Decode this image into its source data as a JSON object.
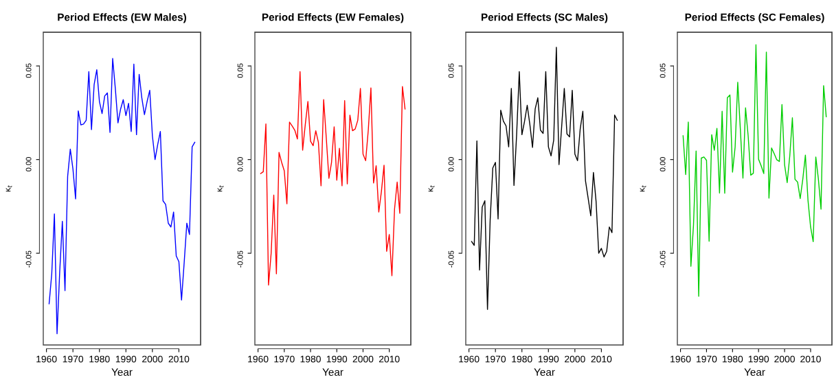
{
  "chart_data": [
    {
      "type": "line",
      "title": "Period Effects (EW Males)",
      "xlabel": "Year",
      "ylabel": "κ$_{t}$",
      "x": [
        1961,
        1962,
        1963,
        1964,
        1965,
        1966,
        1967,
        1968,
        1969,
        1970,
        1971,
        1972,
        1973,
        1974,
        1975,
        1976,
        1977,
        1978,
        1979,
        1980,
        1981,
        1982,
        1983,
        1984,
        1985,
        1986,
        1987,
        1988,
        1989,
        1990,
        1991,
        1992,
        1993,
        1994,
        1995,
        1996,
        1997,
        1998,
        1999,
        2000,
        2001,
        2002,
        2003,
        2004,
        2005,
        2006,
        2007,
        2008,
        2009,
        2010,
        2011,
        2012,
        2013,
        2014,
        2015,
        2016
      ],
      "series": [
        {
          "color": "#0000ff",
          "values": [
            -0.077,
            -0.061,
            -0.029,
            -0.093,
            -0.06,
            -0.033,
            -0.07,
            -0.009,
            0.0056,
            -0.005,
            -0.021,
            0.026,
            0.0185,
            0.019,
            0.021,
            0.047,
            0.016,
            0.04,
            0.048,
            0.031,
            0.0246,
            0.034,
            0.0356,
            0.0145,
            0.054,
            0.038,
            0.0196,
            0.027,
            0.032,
            0.0235,
            0.03,
            0.015,
            0.051,
            0.0133,
            0.0455,
            0.033,
            0.024,
            0.031,
            0.037,
            0.0127,
            0.0,
            0.008,
            0.015,
            -0.022,
            -0.024,
            -0.034,
            -0.036,
            -0.028,
            -0.0515,
            -0.0545,
            -0.075,
            -0.055,
            -0.034,
            -0.04,
            0.0068,
            0.0092
          ]
        }
      ],
      "xlim": [
        1958.8,
        2018.2
      ],
      "ylim": [
        -0.099,
        0.068
      ],
      "xticks": [
        1960,
        1970,
        1980,
        1990,
        2000,
        2010
      ],
      "yticks": [
        {
          "value": -0.05,
          "label": "-0.05"
        },
        {
          "value": 0,
          "label": "0.00"
        },
        {
          "value": 0.05,
          "label": "0.05"
        }
      ],
      "grid": false
    },
    {
      "type": "line",
      "title": "Period Effects (EW Females)",
      "xlabel": "Year",
      "ylabel": "κ$_{t}$",
      "x": [
        1961,
        1962,
        1963,
        1964,
        1965,
        1966,
        1967,
        1968,
        1969,
        1970,
        1971,
        1972,
        1973,
        1974,
        1975,
        1976,
        1977,
        1978,
        1979,
        1980,
        1981,
        1982,
        1983,
        1984,
        1985,
        1986,
        1987,
        1988,
        1989,
        1990,
        1991,
        1992,
        1993,
        1994,
        1995,
        1996,
        1997,
        1998,
        1999,
        2000,
        2001,
        2002,
        2003,
        2004,
        2005,
        2006,
        2007,
        2008,
        2009,
        2010,
        2011,
        2012,
        2013,
        2014,
        2015,
        2016
      ],
      "series": [
        {
          "color": "#ff0000",
          "values": [
            -0.0075,
            -0.0065,
            0.019,
            -0.067,
            -0.05,
            -0.019,
            -0.061,
            0.0038,
            -0.0015,
            -0.006,
            -0.0236,
            0.02,
            0.018,
            0.0157,
            0.011,
            0.047,
            0.005,
            0.0187,
            0.031,
            0.0098,
            0.0074,
            0.0154,
            0.0092,
            -0.014,
            0.032,
            0.0115,
            -0.01,
            -0.0015,
            0.0175,
            -0.011,
            0.006,
            -0.014,
            0.0315,
            -0.013,
            0.0237,
            0.0154,
            0.0163,
            0.021,
            0.038,
            0.0029,
            -0.0006,
            0.0157,
            0.0383,
            -0.0125,
            -0.0033,
            -0.028,
            -0.017,
            -0.003,
            -0.049,
            -0.04,
            -0.062,
            -0.0265,
            -0.012,
            -0.0287,
            0.039,
            0.027
          ]
        }
      ],
      "xlim": [
        1958.8,
        2018.2
      ],
      "ylim": [
        -0.099,
        0.068
      ],
      "xticks": [
        1960,
        1970,
        1980,
        1990,
        2000,
        2010
      ],
      "yticks": [
        {
          "value": -0.05,
          "label": "-0.05"
        },
        {
          "value": 0,
          "label": "0.00"
        },
        {
          "value": 0.05,
          "label": "0.05"
        }
      ],
      "grid": false
    },
    {
      "type": "line",
      "title": "Period Effects (SC Males)",
      "xlabel": "Year",
      "ylabel": "κ$_{t}$",
      "x": [
        1961,
        1962,
        1963,
        1964,
        1965,
        1966,
        1967,
        1968,
        1969,
        1970,
        1971,
        1972,
        1973,
        1974,
        1975,
        1976,
        1977,
        1978,
        1979,
        1980,
        1981,
        1982,
        1983,
        1984,
        1985,
        1986,
        1987,
        1988,
        1989,
        1990,
        1991,
        1992,
        1993,
        1994,
        1995,
        1996,
        1997,
        1998,
        1999,
        2000,
        2001,
        2002,
        2003,
        2004,
        2005,
        2006,
        2007,
        2008,
        2009,
        2010,
        2011,
        2012,
        2013,
        2014,
        2015,
        2016
      ],
      "series": [
        {
          "color": "#000000",
          "values": [
            -0.0438,
            -0.0458,
            0.01,
            -0.059,
            -0.0254,
            -0.022,
            -0.08,
            -0.0325,
            -0.0045,
            -0.0015,
            -0.0317,
            0.0264,
            0.0205,
            0.018,
            0.0068,
            0.038,
            -0.0138,
            0.0133,
            0.047,
            0.0133,
            0.0205,
            0.029,
            0.0187,
            0.0065,
            0.027,
            0.033,
            0.0157,
            0.014,
            0.047,
            0.0068,
            0.002,
            0.0104,
            0.06,
            -0.0027,
            0.0175,
            0.038,
            0.0137,
            0.0121,
            0.037,
            0.0029,
            -0.0006,
            0.0163,
            0.0258,
            -0.0113,
            -0.0206,
            -0.03,
            -0.0069,
            -0.0224,
            -0.05,
            -0.0474,
            -0.052,
            -0.049,
            -0.036,
            -0.039,
            0.0238,
            0.021
          ]
        }
      ],
      "xlim": [
        1958.8,
        2018.2
      ],
      "ylim": [
        -0.099,
        0.068
      ],
      "xticks": [
        1960,
        1970,
        1980,
        1990,
        2000,
        2010
      ],
      "yticks": [
        {
          "value": -0.05,
          "label": "-0.05"
        },
        {
          "value": 0,
          "label": "0.00"
        },
        {
          "value": 0.05,
          "label": "0.05"
        }
      ],
      "grid": false
    },
    {
      "type": "line",
      "title": "Period Effects (SC Females)",
      "xlabel": "Year",
      "ylabel": "κ$_{t}$",
      "x": [
        1961,
        1962,
        1963,
        1964,
        1965,
        1966,
        1967,
        1968,
        1969,
        1970,
        1971,
        1972,
        1973,
        1974,
        1975,
        1976,
        1977,
        1978,
        1979,
        1980,
        1981,
        1982,
        1983,
        1984,
        1985,
        1986,
        1987,
        1988,
        1989,
        1990,
        1991,
        1992,
        1993,
        1994,
        1995,
        1996,
        1997,
        1998,
        1999,
        2000,
        2001,
        2002,
        2003,
        2004,
        2005,
        2006,
        2007,
        2008,
        2009,
        2010,
        2011,
        2012,
        2013,
        2014,
        2015,
        2016
      ],
      "series": [
        {
          "color": "#00cd00",
          "values": [
            0.0127,
            -0.008,
            0.02,
            -0.057,
            -0.035,
            0.0046,
            -0.073,
            0.0008,
            0.0014,
            -0.0004,
            -0.0436,
            0.0133,
            0.005,
            0.0167,
            -0.0179,
            0.0258,
            -0.018,
            0.033,
            0.0345,
            -0.0067,
            0.0068,
            0.0413,
            0.0163,
            -0.0099,
            0.0276,
            0.0127,
            -0.0083,
            -0.0073,
            0.0613,
            0.0002,
            -0.0033,
            -0.0075,
            0.0574,
            -0.0206,
            0.0062,
            0.0032,
            -0.0001,
            -0.001,
            0.0294,
            -0.0027,
            -0.0123,
            0.002,
            0.0223,
            -0.0105,
            -0.012,
            -0.0208,
            -0.0105,
            0.0024,
            -0.0218,
            -0.036,
            -0.0438,
            0.0014,
            -0.0105,
            -0.0265,
            0.0395,
            0.0229
          ]
        }
      ],
      "xlim": [
        1958.8,
        2018.2
      ],
      "ylim": [
        -0.099,
        0.068
      ],
      "xticks": [
        1960,
        1970,
        1980,
        1990,
        2000,
        2010
      ],
      "yticks": [
        {
          "value": -0.05,
          "label": "-0.05"
        },
        {
          "value": 0,
          "label": "0.00"
        },
        {
          "value": 0.05,
          "label": "0.05"
        }
      ],
      "grid": false
    }
  ]
}
